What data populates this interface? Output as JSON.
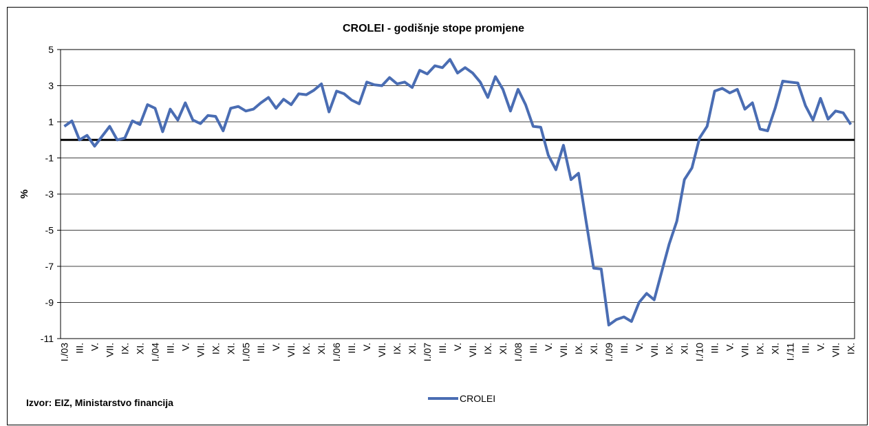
{
  "chart_data": {
    "type": "line",
    "title": "CROLEI - godišnje stope promjene",
    "y_label": "%",
    "source": "Izvor: EIZ, Ministarstvo financija",
    "categories": [
      "I./03",
      null,
      "III.",
      null,
      "V.",
      null,
      "VII.",
      null,
      "IX.",
      null,
      "XI.",
      null,
      "I./04",
      null,
      "III.",
      null,
      "V.",
      null,
      "VII.",
      null,
      "IX.",
      null,
      "XI.",
      null,
      "I./05",
      null,
      "III.",
      null,
      "V.",
      null,
      "VII.",
      null,
      "IX.",
      null,
      "XI.",
      null,
      "I./06",
      null,
      "III.",
      null,
      "V.",
      null,
      "VII.",
      null,
      "IX.",
      null,
      "XI.",
      null,
      "I./07",
      null,
      "III.",
      null,
      "V.",
      null,
      "VII.",
      null,
      "IX.",
      null,
      "XI.",
      null,
      "I./08",
      null,
      "III.",
      null,
      "V.",
      null,
      "VII.",
      null,
      "IX.",
      null,
      "XI.",
      null,
      "I./09",
      null,
      "III.",
      null,
      "V.",
      null,
      "VII.",
      null,
      "IX.",
      null,
      "XI.",
      null,
      "I./10",
      null,
      "III.",
      null,
      "V.",
      null,
      "VII.",
      null,
      "IX.",
      null,
      "XI.",
      null,
      "I./11",
      null,
      "III.",
      null,
      "V.",
      null,
      "VII.",
      null,
      "IX."
    ],
    "series": [
      {
        "name": "CROLEI",
        "color": "#4a6db3",
        "values": [
          0.75,
          1.05,
          0.0,
          0.25,
          -0.35,
          0.2,
          0.75,
          0.0,
          0.1,
          1.05,
          0.85,
          1.95,
          1.75,
          0.45,
          1.7,
          1.1,
          2.05,
          1.1,
          0.9,
          1.35,
          1.3,
          0.5,
          1.75,
          1.85,
          1.6,
          1.7,
          2.05,
          2.35,
          1.75,
          2.25,
          1.95,
          2.55,
          2.5,
          2.75,
          3.1,
          1.55,
          2.7,
          2.55,
          2.2,
          2.0,
          3.2,
          3.05,
          3.0,
          3.45,
          3.1,
          3.2,
          2.9,
          3.85,
          3.65,
          4.1,
          4.0,
          4.45,
          3.7,
          4.0,
          3.7,
          3.2,
          2.35,
          3.5,
          2.8,
          1.6,
          2.8,
          1.95,
          0.75,
          0.7,
          -0.85,
          -1.65,
          -0.3,
          -2.2,
          -1.85,
          -4.5,
          -7.1,
          -7.15,
          -10.25,
          -9.95,
          -9.8,
          -10.05,
          -9.0,
          -8.5,
          -8.85,
          -7.3,
          -5.75,
          -4.5,
          -2.2,
          -1.55,
          0.1,
          0.75,
          2.7,
          2.85,
          2.6,
          2.8,
          1.7,
          2.05,
          0.6,
          0.5,
          1.75,
          3.25,
          3.2,
          3.15,
          1.9,
          1.1,
          2.3,
          1.15,
          1.6,
          1.5,
          0.85
        ]
      }
    ],
    "ylim": [
      -11,
      5
    ],
    "yticks": [
      -11,
      -9,
      -7,
      -5,
      -3,
      -1,
      1,
      3,
      5
    ],
    "grid": true,
    "zero_line": true,
    "legend": "bottom"
  }
}
